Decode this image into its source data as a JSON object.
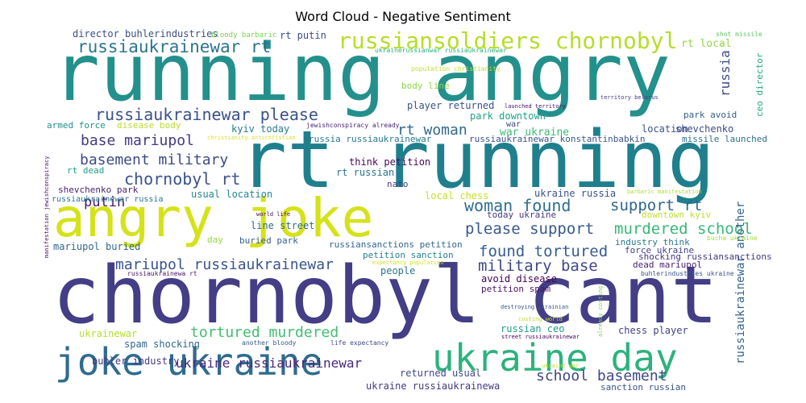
{
  "title": "Word Cloud - Negative Sentiment",
  "chart_data": {
    "type": "wordcloud",
    "title": "Word Cloud - Negative Sentiment",
    "colormap": "viridis",
    "words": [
      {
        "text": "running angry",
        "color": "#23908c"
      },
      {
        "text": "rt running",
        "color": "#1f7f8d"
      },
      {
        "text": "chornobyl cant",
        "color": "#433e85"
      },
      {
        "text": "angry joke",
        "color": "#d5e21a"
      },
      {
        "text": "joke ukraine",
        "color": "#2f6b8e"
      },
      {
        "text": "ukraine day",
        "color": "#2db27d"
      },
      {
        "text": "russiansoldiers chornobyl",
        "color": "#b5de2b"
      },
      {
        "text": "russiaukrainewar rt",
        "color": "#2b748e"
      },
      {
        "text": "russiaukrainewar please",
        "color": "#3b528b"
      },
      {
        "text": "rt woman",
        "color": "#31678e"
      },
      {
        "text": "base mariupol",
        "color": "#443a83"
      },
      {
        "text": "basement military",
        "color": "#3e4989"
      },
      {
        "text": "chornobyl rt",
        "color": "#3b528b"
      },
      {
        "text": "putin",
        "color": "#481668"
      },
      {
        "text": "woman found",
        "color": "#2e6e8e"
      },
      {
        "text": "support rt",
        "color": "#31678e"
      },
      {
        "text": "please support",
        "color": "#38598c"
      },
      {
        "text": "murdered school",
        "color": "#37b878"
      },
      {
        "text": "found tortured",
        "color": "#365c8d"
      },
      {
        "text": "military base",
        "color": "#3f4788"
      },
      {
        "text": "mariupol russiaukrainewar",
        "color": "#3a548c"
      },
      {
        "text": "tortured murdered",
        "color": "#42be71"
      },
      {
        "text": "school basement",
        "color": "#404688"
      },
      {
        "text": "ukraine russiaukrainewar",
        "color": "#482979"
      },
      {
        "text": "russiaukrainewar another",
        "color": "#33638d"
      },
      {
        "text": "russia",
        "color": "#3f4889"
      },
      {
        "text": "rt local",
        "color": "#8fd744"
      },
      {
        "text": "director buhlerindustries",
        "color": "#3e4c8a"
      },
      {
        "text": "bloody barbaric",
        "color": "#7ad151"
      },
      {
        "text": "rt putin",
        "color": "#3e4c8a"
      },
      {
        "text": "shot missile",
        "color": "#5ec962"
      },
      {
        "text": "ceo director",
        "color": "#22a884"
      },
      {
        "text": "ukrainerussianwar russiaukrainewar",
        "color": "#29af7f"
      },
      {
        "text": "population christianity",
        "color": "#c2df23"
      },
      {
        "text": "body line",
        "color": "#8fd744"
      },
      {
        "text": "player returned",
        "color": "#3b528b"
      },
      {
        "text": "launched territory",
        "color": "#471063"
      },
      {
        "text": "territory belarus",
        "color": "#443b84"
      },
      {
        "text": "park downtown",
        "color": "#1fa187"
      },
      {
        "text": "park avoid",
        "color": "#35608d"
      },
      {
        "text": "armed force",
        "color": "#218f8d"
      },
      {
        "text": "disease body",
        "color": "#b8de29"
      },
      {
        "text": "kyiv today",
        "color": "#2a788e"
      },
      {
        "text": "jewishconspiracy already",
        "color": "#482576"
      },
      {
        "text": "war",
        "color": "#404387"
      },
      {
        "text": "war ukraine",
        "color": "#3dbc74"
      },
      {
        "text": "location",
        "color": "#3b528b"
      },
      {
        "text": "shevchenko",
        "color": "#3e4a89"
      },
      {
        "text": "christianity antichristian",
        "color": "#d8e219"
      },
      {
        "text": "russia russiaukrainewar",
        "color": "#29798e"
      },
      {
        "text": "russiaukrainewar konstantinbabkin",
        "color": "#3a538b"
      },
      {
        "text": "missile launched",
        "color": "#2d708e"
      },
      {
        "text": "think petition",
        "color": "#46085c"
      },
      {
        "text": "rt russian",
        "color": "#2c728e"
      },
      {
        "text": "rt dead",
        "color": "#1fa188"
      },
      {
        "text": "shevchenko park",
        "color": "#481f70"
      },
      {
        "text": "nato",
        "color": "#423f85"
      },
      {
        "text": "usual location",
        "color": "#24878e"
      },
      {
        "text": "local chess",
        "color": "#c5e021"
      },
      {
        "text": "ukraine russia",
        "color": "#3b528b"
      },
      {
        "text": "russiaukrainewar russia",
        "color": "#2c738e"
      },
      {
        "text": "manifestation jewishconspiracy",
        "color": "#471365"
      },
      {
        "text": "barbaric manifestation",
        "color": "#addc30"
      },
      {
        "text": "world life",
        "color": "#440154"
      },
      {
        "text": "line street",
        "color": "#2e6d8e"
      },
      {
        "text": "today ukraine",
        "color": "#453781"
      },
      {
        "text": "downtown kyiv",
        "color": "#bddf26"
      },
      {
        "text": "day",
        "color": "#93d741"
      },
      {
        "text": "buried park",
        "color": "#365d8d"
      },
      {
        "text": "industry think",
        "color": "#29798e"
      },
      {
        "text": "bucha ukraine",
        "color": "#a0da39"
      },
      {
        "text": "mariupol buried",
        "color": "#31668e"
      },
      {
        "text": "russiansanctions petition",
        "color": "#32648e"
      },
      {
        "text": "shocking russiansanctions",
        "color": "#453781"
      },
      {
        "text": "force ukraine",
        "color": "#404588"
      },
      {
        "text": "dead mariupol",
        "color": "#482374"
      },
      {
        "text": "petition sanction",
        "color": "#26818e"
      },
      {
        "text": "expectancy population",
        "color": "#d2e21b"
      },
      {
        "text": "russiaukrainewa rt",
        "color": "#471365"
      },
      {
        "text": "buhlerindustries ukraine",
        "color": "#3a538b"
      },
      {
        "text": "people",
        "color": "#2a768e"
      },
      {
        "text": "avoid disease",
        "color": "#440154"
      },
      {
        "text": "petition spam",
        "color": "#481467"
      },
      {
        "text": "already costing",
        "color": "#7ad151"
      },
      {
        "text": "destroying ukrainian",
        "color": "#3b518b"
      },
      {
        "text": "costing world",
        "color": "#c0df25"
      },
      {
        "text": "ukrainewar",
        "color": "#b5de2b"
      },
      {
        "text": "russian ceo",
        "color": "#1e9b8a"
      },
      {
        "text": "chess player",
        "color": "#414287"
      },
      {
        "text": "street russiaukrainewar",
        "color": "#440154"
      },
      {
        "text": "spam shocking",
        "color": "#31668e"
      },
      {
        "text": "another bloody",
        "color": "#38598c"
      },
      {
        "text": "life expectancy",
        "color": "#3f4788"
      },
      {
        "text": "returned usual",
        "color": "#3f4889"
      },
      {
        "text": "buhler industry",
        "color": "#453882"
      },
      {
        "text": "ukraine russiaukrainewa",
        "color": "#453781"
      },
      {
        "text": "ukraine war",
        "color": "#c0df25"
      },
      {
        "text": "sanction russian",
        "color": "#3a538b"
      }
    ]
  }
}
